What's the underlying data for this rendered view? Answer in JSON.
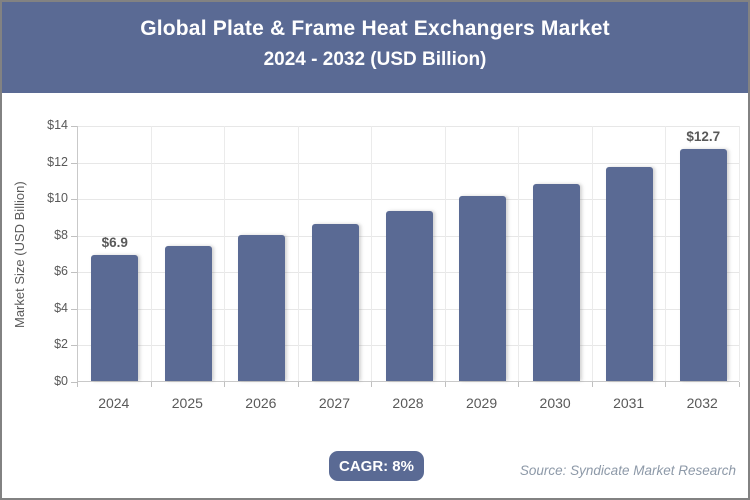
{
  "header": {
    "title_line1": "Global Plate & Frame Heat Exchangers Market",
    "title_line2": "2024 - 2032 (USD Billion)"
  },
  "chart_data": {
    "type": "bar",
    "title": "Global Plate & Frame Heat Exchangers Market 2024 - 2032 (USD Billion)",
    "categories": [
      "2024",
      "2025",
      "2026",
      "2027",
      "2028",
      "2029",
      "2030",
      "2031",
      "2032"
    ],
    "values": [
      6.9,
      7.4,
      8.0,
      8.6,
      9.3,
      10.1,
      10.8,
      11.7,
      12.7
    ],
    "data_labels": [
      "$6.9",
      "",
      "",
      "",
      "",
      "",
      "",
      "",
      "$12.7"
    ],
    "xlabel": "",
    "ylabel": "Market Size (USD Billion)",
    "ylim": [
      0,
      14
    ],
    "y_tick_values": [
      0,
      2,
      4,
      6,
      8,
      10,
      12,
      14
    ],
    "y_ticks": [
      "$0",
      "$2",
      "$4",
      "$6",
      "$8",
      "$10",
      "$12",
      "$14"
    ],
    "grid": true,
    "legend": "none",
    "bar_color": "#5a6a94"
  },
  "footer": {
    "cagr_label": "CAGR: 8%",
    "source": "Source: Syndicate Market Research"
  },
  "colors": {
    "accent": "#5a6a94",
    "axis_text": "#595959",
    "gridline": "#e7e7e7",
    "source_text": "#8d99a8"
  }
}
